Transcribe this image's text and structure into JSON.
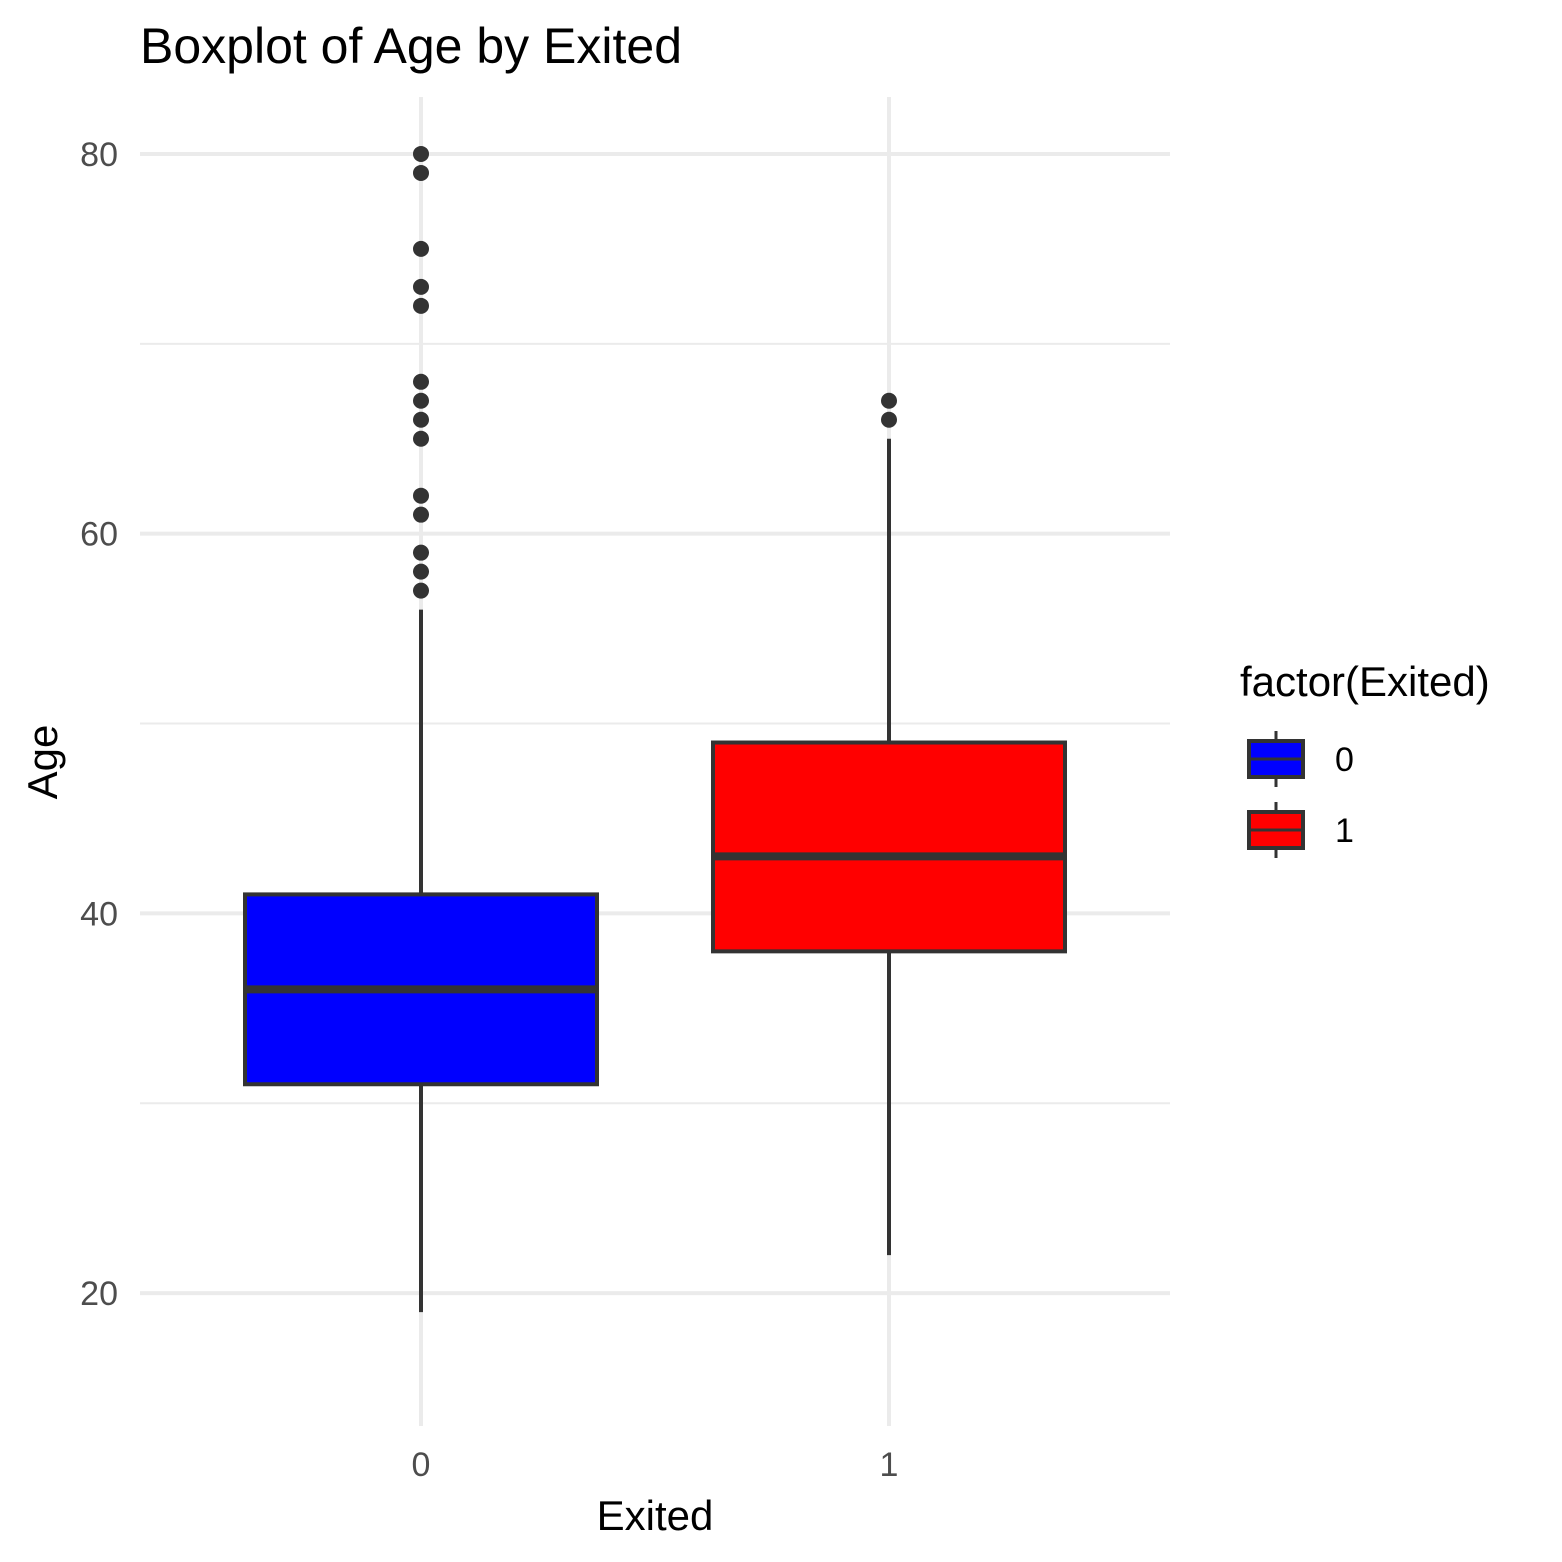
{
  "chart_data": {
    "type": "boxplot",
    "title": "Boxplot of Age by Exited",
    "xlabel": "Exited",
    "ylabel": "Age",
    "categories": [
      "0",
      "1"
    ],
    "ylim": [
      13,
      83
    ],
    "yticks": [
      20,
      40,
      60,
      80
    ],
    "grid": true,
    "legend": {
      "title": "factor(Exited)",
      "position": "right",
      "entries": [
        "0",
        "1"
      ]
    },
    "colors": {
      "0": "#0000ff",
      "1": "#ff0000",
      "outline": "#333333",
      "grid": "#ebebeb"
    },
    "series": [
      {
        "category": "0",
        "lower_whisker": 19,
        "q1": 31,
        "median": 36,
        "q3": 41,
        "upper_whisker": 56,
        "outliers": [
          57,
          58,
          59,
          61,
          62,
          65,
          66,
          67,
          68,
          72,
          73,
          75,
          79,
          80
        ]
      },
      {
        "category": "1",
        "lower_whisker": 22,
        "q1": 38,
        "median": 43,
        "q3": 49,
        "upper_whisker": 65,
        "outliers": [
          66,
          67
        ]
      }
    ]
  }
}
